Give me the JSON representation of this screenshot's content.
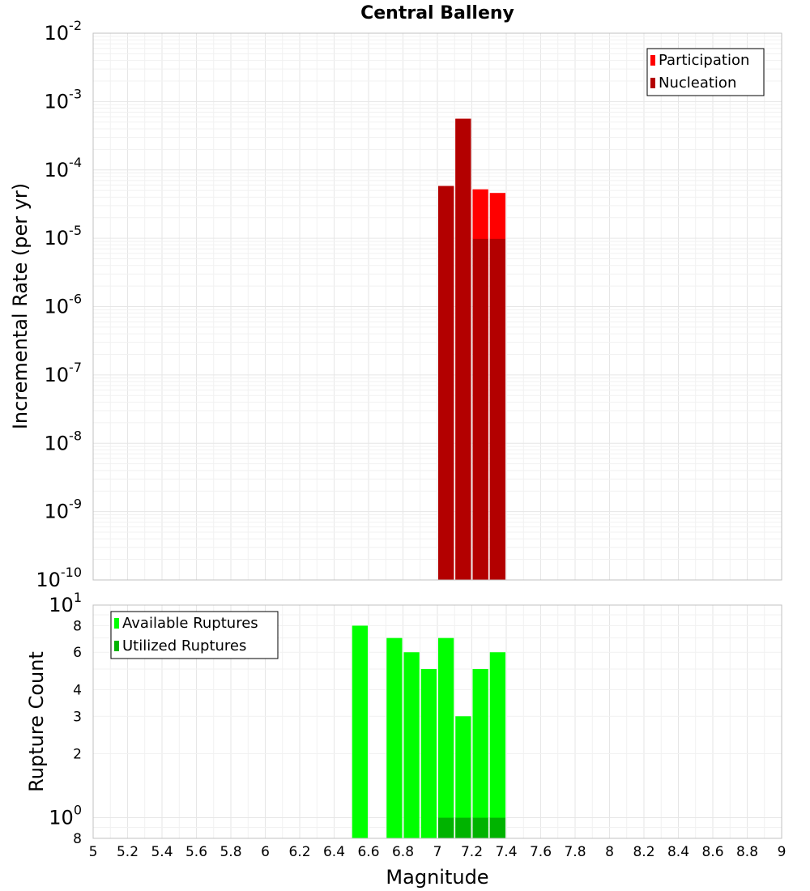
{
  "chart_data": [
    {
      "type": "bar",
      "title": "Central Balleny",
      "ylabel": "Incremental Rate (per yr)",
      "xlabel": "",
      "xlim": [
        5,
        9
      ],
      "ylim": [
        1e-10,
        0.01
      ],
      "yscale": "log",
      "grid": true,
      "bar_width": 0.1,
      "legend_position": "top-right",
      "x_ticks": [
        "5",
        "5.2",
        "5.4",
        "5.6",
        "5.8",
        "6",
        "6.2",
        "6.4",
        "6.6",
        "6.8",
        "7",
        "7.2",
        "7.4",
        "7.6",
        "7.8",
        "8",
        "8.2",
        "8.4",
        "8.6",
        "8.8",
        "9"
      ],
      "y_ticks": [
        {
          "value": 1e-10,
          "base": "10",
          "exp": "-10"
        },
        {
          "value": 1e-09,
          "base": "10",
          "exp": "-9"
        },
        {
          "value": 1e-08,
          "base": "10",
          "exp": "-8"
        },
        {
          "value": 1e-07,
          "base": "10",
          "exp": "-7"
        },
        {
          "value": 1e-06,
          "base": "10",
          "exp": "-6"
        },
        {
          "value": 1e-05,
          "base": "10",
          "exp": "-5"
        },
        {
          "value": 0.0001,
          "base": "10",
          "exp": "-4"
        },
        {
          "value": 0.001,
          "base": "10",
          "exp": "-3"
        },
        {
          "value": 0.01,
          "base": "10",
          "exp": "-2"
        }
      ],
      "series": [
        {
          "name": "Participation",
          "color": "#ff0000",
          "x": [
            7.05,
            7.15,
            7.25,
            7.35
          ],
          "values": [
            5.8e-05,
            0.00056,
            5.2e-05,
            4.6e-05
          ]
        },
        {
          "name": "Nucleation",
          "color": "#b30000",
          "x": [
            7.05,
            7.15,
            7.25,
            7.35
          ],
          "values": [
            5.8e-05,
            0.00056,
            9.8e-06,
            9.8e-06
          ]
        }
      ]
    },
    {
      "type": "bar",
      "title": "",
      "ylabel": "Rupture Count",
      "xlabel": "Magnitude",
      "xlim": [
        5,
        9
      ],
      "ylim": [
        0.8,
        10
      ],
      "yscale": "log",
      "grid": true,
      "bar_width": 0.1,
      "legend_position": "top-left",
      "x_ticks": [
        "5",
        "5.2",
        "5.4",
        "5.6",
        "5.8",
        "6",
        "6.2",
        "6.4",
        "6.6",
        "6.8",
        "7",
        "7.2",
        "7.4",
        "7.6",
        "7.8",
        "8",
        "8.2",
        "8.4",
        "8.6",
        "8.8",
        "9"
      ],
      "y_ticks": [
        {
          "value": 0.8,
          "base": "8",
          "exp": ""
        },
        {
          "value": 1,
          "base": "10",
          "exp": "0"
        },
        {
          "value": 2,
          "base": "2",
          "exp": ""
        },
        {
          "value": 3,
          "base": "3",
          "exp": ""
        },
        {
          "value": 4,
          "base": "4",
          "exp": ""
        },
        {
          "value": 6,
          "base": "6",
          "exp": ""
        },
        {
          "value": 8,
          "base": "8",
          "exp": ""
        },
        {
          "value": 10,
          "base": "10",
          "exp": "1"
        }
      ],
      "series": [
        {
          "name": "Available Ruptures",
          "color": "#00ff00",
          "x": [
            6.55,
            6.75,
            6.85,
            6.95,
            7.05,
            7.15,
            7.25,
            7.35
          ],
          "values": [
            8,
            7,
            6,
            5,
            7,
            3,
            5,
            6
          ]
        },
        {
          "name": "Utilized Ruptures",
          "color": "#00b300",
          "x": [
            7.05,
            7.15,
            7.25,
            7.35
          ],
          "values": [
            1,
            1,
            1,
            1
          ]
        }
      ]
    }
  ]
}
